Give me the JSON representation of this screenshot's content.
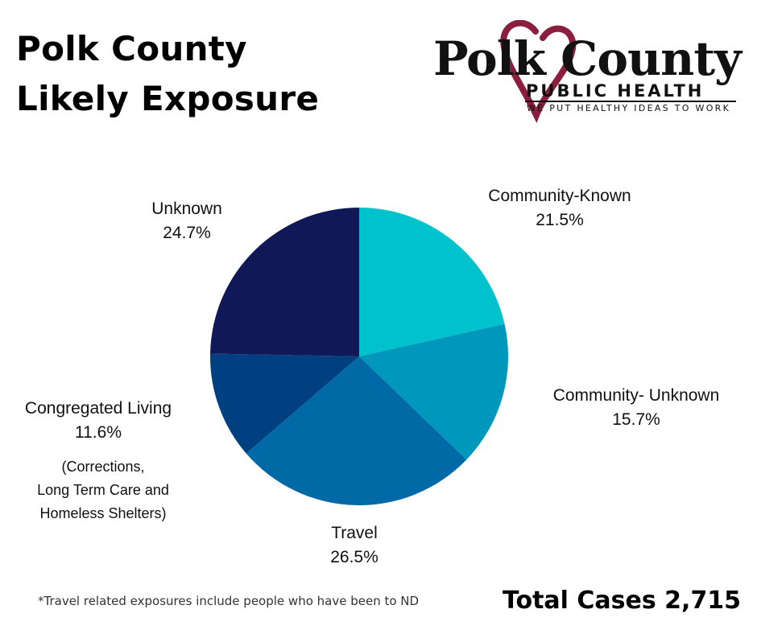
{
  "title": {
    "line1": "Polk County",
    "line2": "Likely Exposure"
  },
  "logo": {
    "main": "Polk County",
    "sub": "PUBLIC HEALTH",
    "tagline": "WE PUT HEALTHY IDEAS TO WORK",
    "heart_color": "#8B1E3F"
  },
  "chart_data": {
    "type": "pie",
    "title": "Polk County Likely Exposure",
    "slices": [
      {
        "name": "Community-Known",
        "value": 21.5,
        "label": "21.5%",
        "color": "#00C2CC"
      },
      {
        "name": "Community- Unknown",
        "value": 15.7,
        "label": "15.7%",
        "color": "#0097BC"
      },
      {
        "name": "Travel",
        "value": 26.5,
        "label": "26.5%",
        "color": "#0069A6"
      },
      {
        "name": "Congregated Living",
        "value": 11.6,
        "label": "11.6%",
        "color": "#004080"
      },
      {
        "name": "Unknown",
        "value": 24.7,
        "label": "24.7%",
        "color": "#111857"
      }
    ]
  },
  "notes": {
    "congregated_line1": "(Corrections,",
    "congregated_line2": "Long Term Care and",
    "congregated_line3": "Homeless Shelters)"
  },
  "footnote": "*Travel related exposures include people who have been to ND",
  "total": "Total Cases 2,715"
}
